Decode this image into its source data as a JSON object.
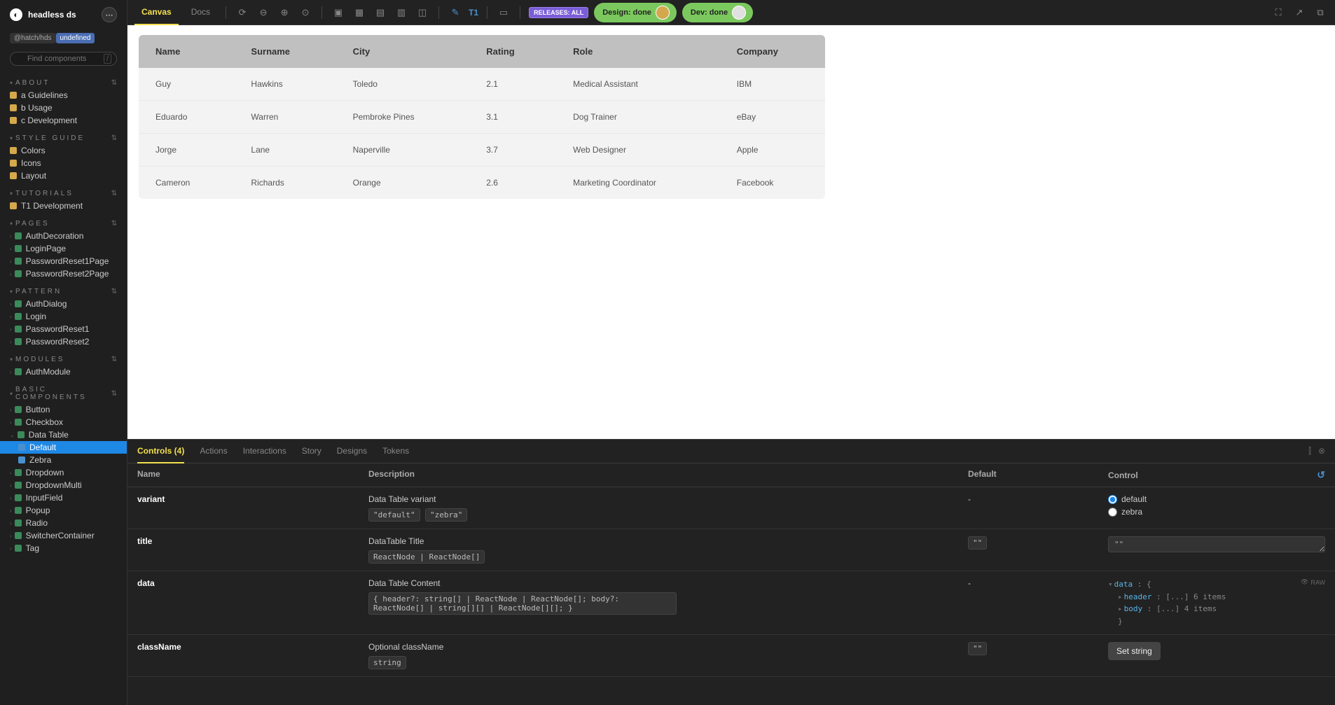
{
  "app_title": "headless ds",
  "workspace_tag": "@hatch/hds",
  "version_tag": "undefined",
  "search_placeholder": "Find components",
  "colors": {
    "accent_yellow": "#f4e04d",
    "accent_blue": "#1e88e5",
    "pill_green": "#7bc95e",
    "badge_purple": "#7b5dd8",
    "sidebar_bg": "#1f1f1f",
    "panel_bg": "#222",
    "canvas_bg": "#ffffff",
    "table_wrap_bg": "#f3f3f3",
    "table_header_bg": "#c0c0c0"
  },
  "topbar": {
    "tabs": {
      "canvas": "Canvas",
      "docs": "Docs"
    },
    "t1": "T1",
    "releases_badge": "RELEASES: ALL",
    "design_pill": "Design: done",
    "dev_pill": "Dev: done"
  },
  "sidebar": {
    "sections": {
      "about": {
        "title": "ABOUT",
        "items": [
          "a Guidelines",
          "b Usage",
          "c Development"
        ]
      },
      "style": {
        "title": "STYLE GUIDE",
        "items": [
          "Colors",
          "Icons",
          "Layout"
        ]
      },
      "tutorials": {
        "title": "TUTORIALS",
        "items": [
          "T1 Development"
        ]
      },
      "pages": {
        "title": "PAGES",
        "items": [
          "AuthDecoration",
          "LoginPage",
          "PasswordReset1Page",
          "PasswordReset2Page"
        ]
      },
      "pattern": {
        "title": "PATTERN",
        "items": [
          "AuthDialog",
          "Login",
          "PasswordReset1",
          "PasswordReset2"
        ]
      },
      "modules": {
        "title": "MODULES",
        "items": [
          "AuthModule"
        ]
      },
      "basic": {
        "title": "BASIC COMPONENTS",
        "items": [
          "Button",
          "Checkbox",
          "Data Table",
          "Dropdown",
          "DropdownMulti",
          "InputField",
          "Popup",
          "Radio",
          "SwitcherContainer",
          "Tag"
        ]
      },
      "data_table_children": [
        "Default",
        "Zebra"
      ]
    }
  },
  "canvas_table": {
    "headers": [
      "Name",
      "Surname",
      "City",
      "Rating",
      "Role",
      "Company"
    ],
    "rows": [
      [
        "Guy",
        "Hawkins",
        "Toledo",
        "2.1",
        "Medical Assistant",
        "IBM"
      ],
      [
        "Eduardo",
        "Warren",
        "Pembroke Pines",
        "3.1",
        "Dog Trainer",
        "eBay"
      ],
      [
        "Jorge",
        "Lane",
        "Naperville",
        "3.7",
        "Web Designer",
        "Apple"
      ],
      [
        "Cameron",
        "Richards",
        "Orange",
        "2.6",
        "Marketing Coordinator",
        "Facebook"
      ]
    ]
  },
  "bottom": {
    "tabs": {
      "controls": "Controls (4)",
      "actions": "Actions",
      "interactions": "Interactions",
      "story": "Story",
      "designs": "Designs",
      "tokens": "Tokens"
    },
    "hdr": {
      "name": "Name",
      "desc": "Description",
      "def": "Default",
      "ctrl": "Control"
    },
    "rows": {
      "variant": {
        "name": "variant",
        "desc": "Data Table variant",
        "chips": [
          "\"default\"",
          "\"zebra\""
        ],
        "default": "-",
        "opts": {
          "default": "default",
          "zebra": "zebra"
        }
      },
      "title": {
        "name": "title",
        "desc": "DataTable Title",
        "chips": [
          "ReactNode | ReactNode[]"
        ],
        "default": "\"\"",
        "ctrl_value": "\"\""
      },
      "data": {
        "name": "data",
        "desc": "Data Table Content",
        "chips": [
          "{ header?: string[] | ReactNode | ReactNode[]; body?: ReactNode[] | string[][] | ReactNode[][]; }"
        ],
        "default": "-",
        "json_label_data": "data",
        "json_header": "header",
        "json_header_count": "6 items",
        "json_body": "body",
        "json_body_count": "4 items",
        "raw": "RAW"
      },
      "className": {
        "name": "className",
        "desc": "Optional className",
        "chips": [
          "string"
        ],
        "default": "\"\"",
        "set_label": "Set string"
      }
    }
  }
}
